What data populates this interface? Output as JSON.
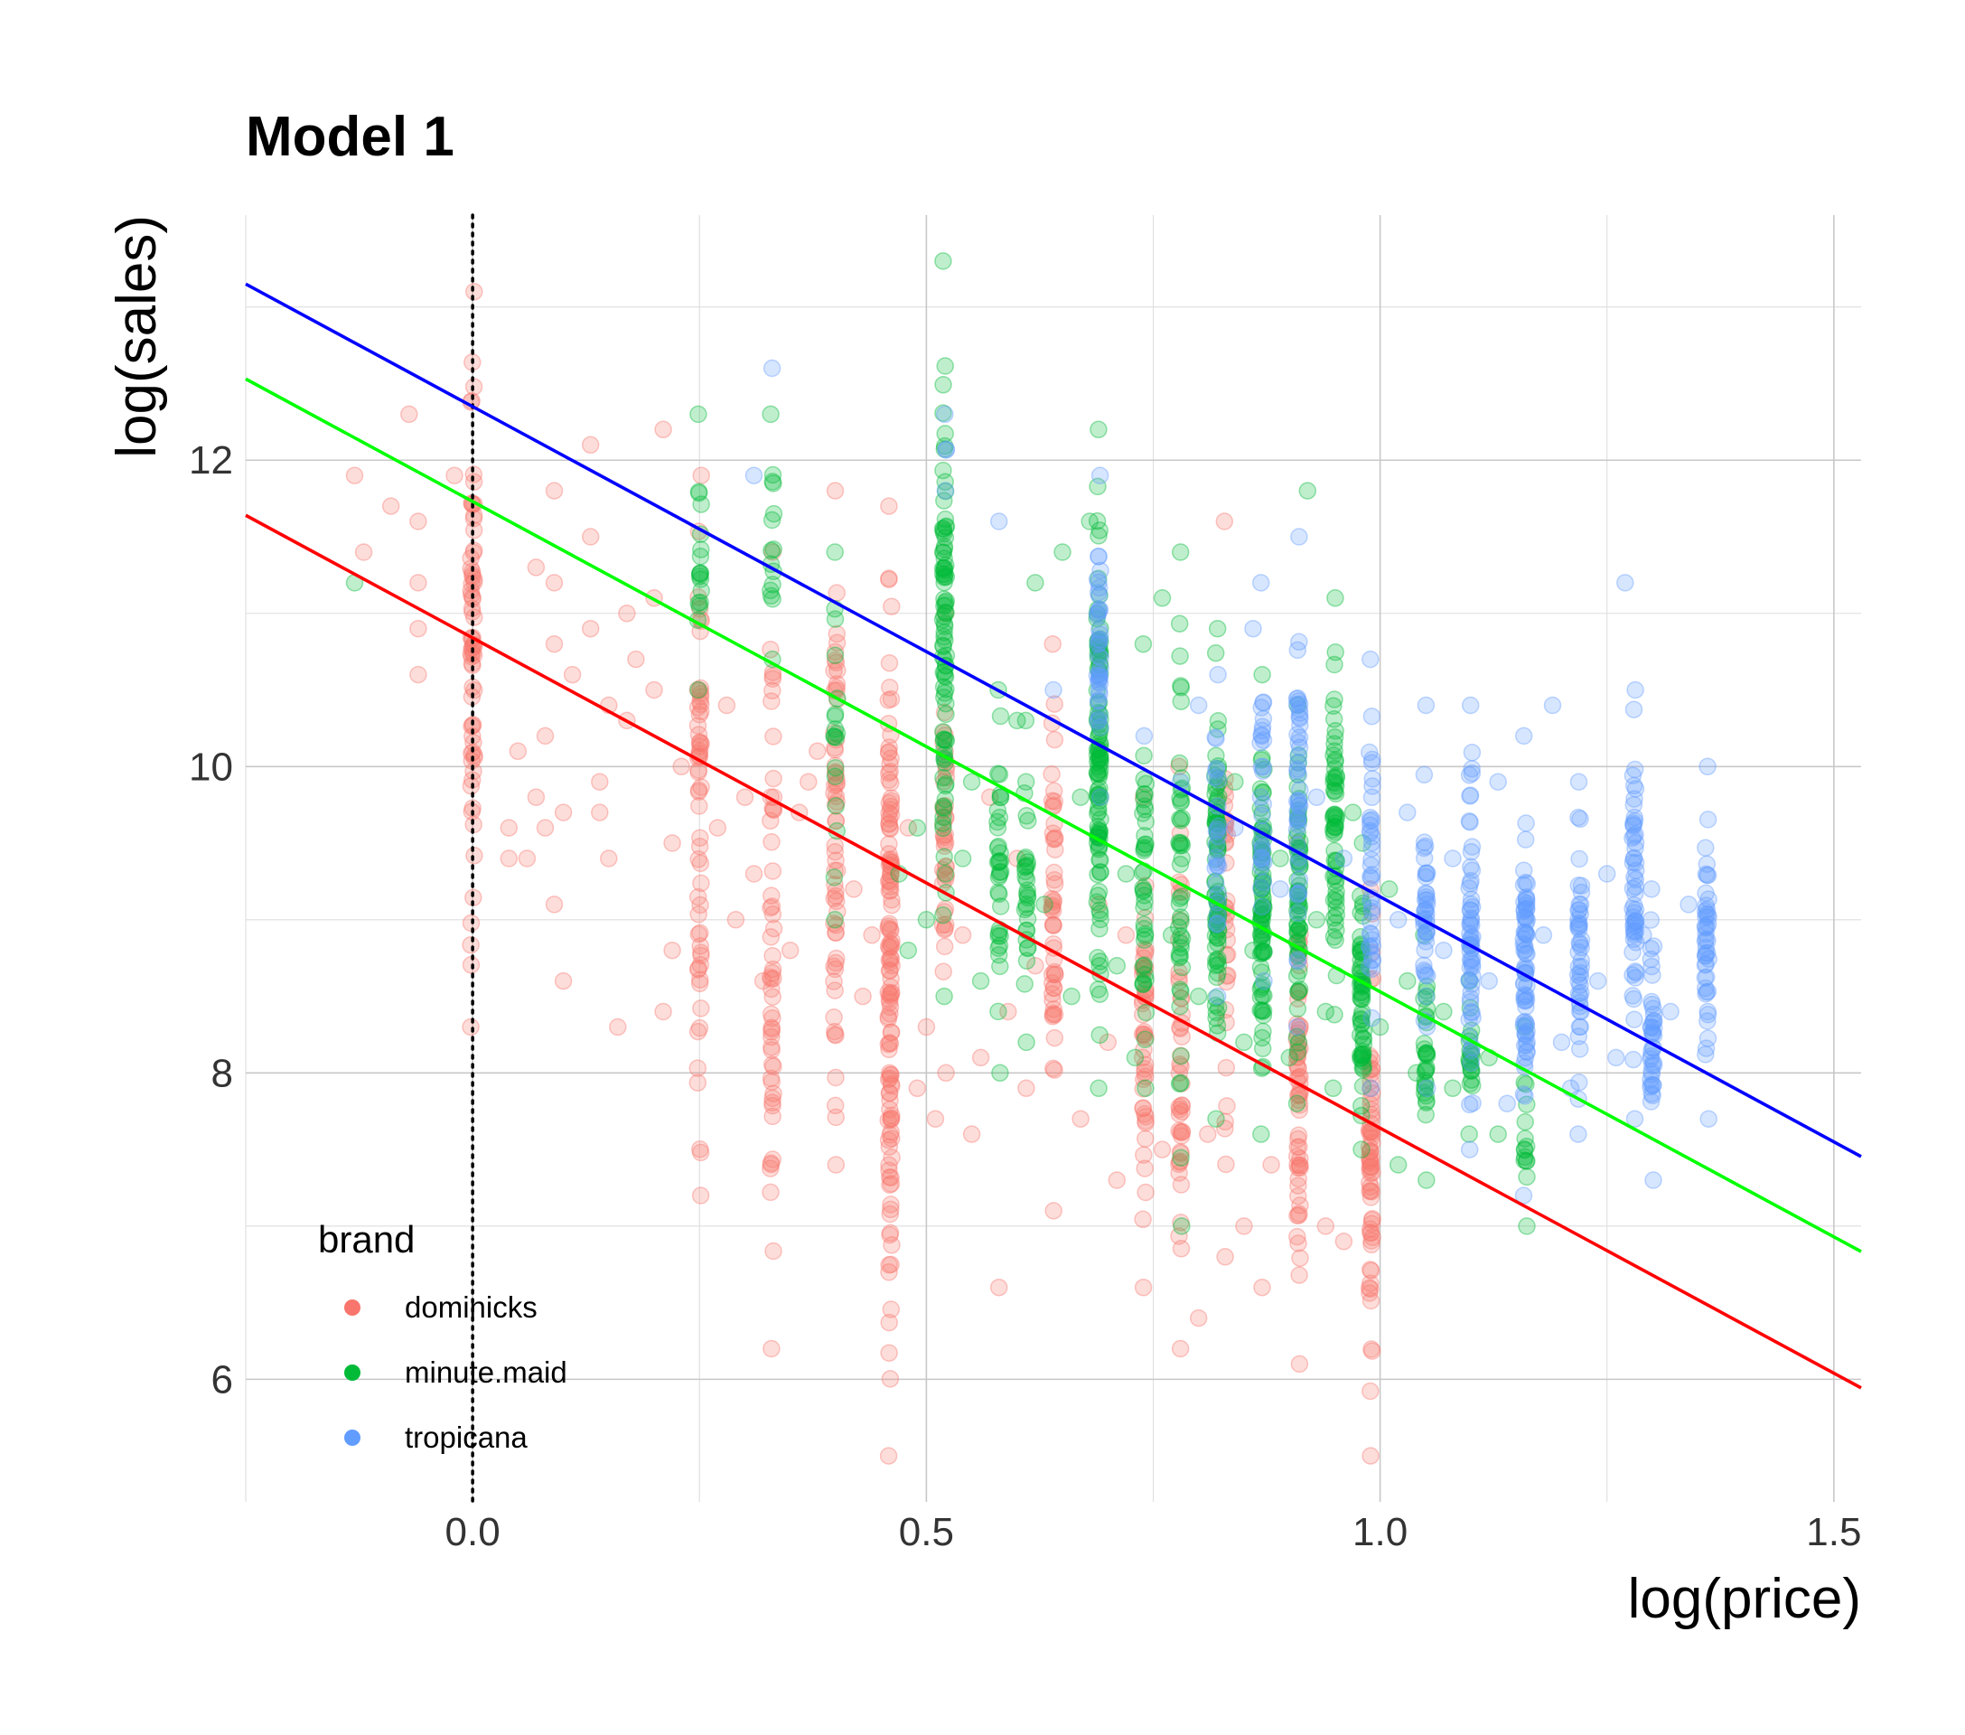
{
  "chart_data": {
    "type": "scatter",
    "title": "Model 1",
    "xlabel": "log(price)",
    "ylabel": "log(sales)",
    "xlim": [
      -0.25,
      1.53
    ],
    "ylim": [
      5.2,
      13.6
    ],
    "x_ticks": [
      0.0,
      0.5,
      1.0,
      1.5
    ],
    "x_tick_labels": [
      "0.0",
      "0.5",
      "1.0",
      "1.5"
    ],
    "y_ticks": [
      6,
      8,
      10,
      12
    ],
    "y_tick_labels": [
      "6",
      "8",
      "10",
      "12"
    ],
    "grid": true,
    "vline": {
      "x": 0.0,
      "style": "dotted",
      "color": "#000000"
    },
    "legend": {
      "title": "brand",
      "placement": "bottom-left",
      "entries": [
        "dominicks",
        "minute.maid",
        "tropicana"
      ]
    },
    "series": [
      {
        "name": "dominicks",
        "color": "#F8766D",
        "point_alpha": 0.25,
        "clusters": [
          {
            "x": 0.0,
            "ymin": 8.3,
            "ymax": 13.1,
            "n": 70
          },
          {
            "x": 0.25,
            "ymin": 7.2,
            "ymax": 11.9,
            "n": 60
          },
          {
            "x": 0.33,
            "ymin": 6.2,
            "ymax": 11.4,
            "n": 55
          },
          {
            "x": 0.4,
            "ymin": 7.4,
            "ymax": 11.8,
            "n": 60
          },
          {
            "x": 0.46,
            "ymin": 5.5,
            "ymax": 11.7,
            "n": 130
          },
          {
            "x": 0.52,
            "ymin": 8.0,
            "ymax": 11.0,
            "n": 40
          },
          {
            "x": 0.64,
            "ymin": 7.1,
            "ymax": 10.8,
            "n": 50
          },
          {
            "x": 0.74,
            "ymin": 6.6,
            "ymax": 9.8,
            "n": 45
          },
          {
            "x": 0.78,
            "ymin": 6.2,
            "ymax": 10.0,
            "n": 45
          },
          {
            "x": 0.83,
            "ymin": 6.8,
            "ymax": 11.6,
            "n": 35
          },
          {
            "x": 0.91,
            "ymin": 6.1,
            "ymax": 9.5,
            "n": 60
          },
          {
            "x": 0.99,
            "ymin": 5.5,
            "ymax": 9.2,
            "n": 70
          }
        ],
        "scatter_points": [
          [
            -0.13,
            11.9
          ],
          [
            -0.12,
            11.4
          ],
          [
            -0.09,
            11.7
          ],
          [
            -0.07,
            12.3
          ],
          [
            -0.06,
            11.6
          ],
          [
            -0.06,
            11.2
          ],
          [
            -0.06,
            10.9
          ],
          [
            -0.06,
            10.6
          ],
          [
            -0.02,
            11.9
          ],
          [
            0.04,
            9.6
          ],
          [
            0.04,
            9.4
          ],
          [
            0.05,
            10.1
          ],
          [
            0.06,
            9.4
          ],
          [
            0.07,
            9.8
          ],
          [
            0.07,
            11.3
          ],
          [
            0.08,
            10.2
          ],
          [
            0.08,
            9.6
          ],
          [
            0.09,
            11.8
          ],
          [
            0.09,
            11.2
          ],
          [
            0.09,
            10.8
          ],
          [
            0.09,
            9.1
          ],
          [
            0.1,
            9.7
          ],
          [
            0.1,
            8.6
          ],
          [
            0.11,
            10.6
          ],
          [
            0.13,
            12.1
          ],
          [
            0.13,
            11.5
          ],
          [
            0.13,
            10.9
          ],
          [
            0.14,
            9.9
          ],
          [
            0.14,
            9.7
          ],
          [
            0.15,
            10.4
          ],
          [
            0.15,
            9.4
          ],
          [
            0.16,
            8.3
          ],
          [
            0.17,
            11.0
          ],
          [
            0.17,
            10.3
          ],
          [
            0.18,
            10.7
          ],
          [
            0.2,
            11.1
          ],
          [
            0.2,
            10.5
          ],
          [
            0.21,
            12.2
          ],
          [
            0.21,
            8.4
          ],
          [
            0.22,
            9.5
          ],
          [
            0.22,
            8.8
          ],
          [
            0.23,
            10.0
          ],
          [
            0.27,
            9.6
          ],
          [
            0.28,
            10.4
          ],
          [
            0.29,
            9.0
          ],
          [
            0.3,
            9.8
          ],
          [
            0.31,
            9.3
          ],
          [
            0.32,
            8.6
          ],
          [
            0.35,
            8.8
          ],
          [
            0.36,
            9.7
          ],
          [
            0.37,
            9.9
          ],
          [
            0.38,
            10.1
          ],
          [
            0.42,
            9.2
          ],
          [
            0.43,
            8.5
          ],
          [
            0.44,
            8.9
          ],
          [
            0.48,
            9.6
          ],
          [
            0.49,
            7.9
          ],
          [
            0.5,
            8.3
          ],
          [
            0.51,
            7.7
          ],
          [
            0.54,
            8.9
          ],
          [
            0.55,
            7.6
          ],
          [
            0.56,
            8.1
          ],
          [
            0.57,
            9.8
          ],
          [
            0.58,
            6.6
          ],
          [
            0.59,
            8.4
          ],
          [
            0.6,
            9.4
          ],
          [
            0.61,
            7.9
          ],
          [
            0.62,
            8.7
          ],
          [
            0.67,
            7.7
          ],
          [
            0.69,
            9.1
          ],
          [
            0.7,
            8.2
          ],
          [
            0.71,
            7.3
          ],
          [
            0.72,
            8.9
          ],
          [
            0.76,
            7.5
          ],
          [
            0.8,
            6.4
          ],
          [
            0.81,
            7.6
          ],
          [
            0.85,
            7.0
          ],
          [
            0.87,
            6.6
          ],
          [
            0.88,
            7.4
          ],
          [
            0.94,
            7.0
          ],
          [
            0.96,
            6.9
          ]
        ]
      },
      {
        "name": "minute.maid",
        "color": "#00BA38",
        "point_alpha": 0.25,
        "clusters": [
          {
            "x": 0.25,
            "ymin": 10.5,
            "ymax": 12.3,
            "n": 18
          },
          {
            "x": 0.33,
            "ymin": 10.7,
            "ymax": 12.3,
            "n": 15
          },
          {
            "x": 0.4,
            "ymin": 9.0,
            "ymax": 11.4,
            "n": 18
          },
          {
            "x": 0.52,
            "ymin": 8.5,
            "ymax": 13.3,
            "n": 90
          },
          {
            "x": 0.58,
            "ymin": 8.0,
            "ymax": 10.5,
            "n": 35
          },
          {
            "x": 0.61,
            "ymin": 8.2,
            "ymax": 10.3,
            "n": 30
          },
          {
            "x": 0.69,
            "ymin": 7.9,
            "ymax": 12.2,
            "n": 110
          },
          {
            "x": 0.74,
            "ymin": 7.9,
            "ymax": 10.8,
            "n": 40
          },
          {
            "x": 0.78,
            "ymin": 7.0,
            "ymax": 11.4,
            "n": 45
          },
          {
            "x": 0.82,
            "ymin": 7.7,
            "ymax": 10.9,
            "n": 80
          },
          {
            "x": 0.87,
            "ymin": 7.6,
            "ymax": 10.6,
            "n": 80
          },
          {
            "x": 0.91,
            "ymin": 7.8,
            "ymax": 10.4,
            "n": 60
          },
          {
            "x": 0.95,
            "ymin": 7.9,
            "ymax": 11.1,
            "n": 60
          },
          {
            "x": 0.98,
            "ymin": 7.5,
            "ymax": 9.5,
            "n": 60
          },
          {
            "x": 1.05,
            "ymin": 7.3,
            "ymax": 8.9,
            "n": 30
          },
          {
            "x": 1.1,
            "ymin": 7.6,
            "ymax": 8.6,
            "n": 20
          },
          {
            "x": 1.16,
            "ymin": 7.0,
            "ymax": 8.3,
            "n": 15
          }
        ],
        "scatter_points": [
          [
            -0.13,
            11.2
          ],
          [
            0.47,
            9.3
          ],
          [
            0.48,
            8.8
          ],
          [
            0.49,
            9.6
          ],
          [
            0.5,
            9.0
          ],
          [
            0.54,
            9.4
          ],
          [
            0.55,
            9.9
          ],
          [
            0.56,
            8.6
          ],
          [
            0.6,
            10.3
          ],
          [
            0.62,
            11.2
          ],
          [
            0.63,
            9.1
          ],
          [
            0.65,
            11.4
          ],
          [
            0.66,
            8.5
          ],
          [
            0.67,
            9.8
          ],
          [
            0.68,
            11.6
          ],
          [
            0.71,
            8.7
          ],
          [
            0.72,
            9.3
          ],
          [
            0.73,
            8.1
          ],
          [
            0.76,
            11.1
          ],
          [
            0.77,
            8.9
          ],
          [
            0.8,
            8.5
          ],
          [
            0.84,
            9.9
          ],
          [
            0.85,
            8.2
          ],
          [
            0.86,
            8.8
          ],
          [
            0.89,
            9.4
          ],
          [
            0.9,
            8.1
          ],
          [
            0.92,
            11.8
          ],
          [
            0.93,
            9.0
          ],
          [
            0.94,
            8.4
          ],
          [
            0.97,
            9.7
          ],
          [
            1.0,
            8.3
          ],
          [
            1.01,
            9.2
          ],
          [
            1.02,
            7.4
          ],
          [
            1.03,
            8.6
          ],
          [
            1.04,
            8.0
          ],
          [
            1.07,
            8.4
          ],
          [
            1.08,
            7.9
          ],
          [
            1.12,
            8.1
          ],
          [
            1.13,
            7.6
          ]
        ]
      },
      {
        "name": "tropicana",
        "color": "#619CFF",
        "point_alpha": 0.25,
        "clusters": [
          {
            "x": 0.52,
            "ymin": 11.8,
            "ymax": 12.3,
            "n": 4
          },
          {
            "x": 0.69,
            "ymin": 9.8,
            "ymax": 11.9,
            "n": 40
          },
          {
            "x": 0.82,
            "ymin": 8.5,
            "ymax": 10.6,
            "n": 25
          },
          {
            "x": 0.87,
            "ymin": 8.6,
            "ymax": 11.2,
            "n": 30
          },
          {
            "x": 0.91,
            "ymin": 8.3,
            "ymax": 11.5,
            "n": 45
          },
          {
            "x": 0.99,
            "ymin": 7.9,
            "ymax": 10.7,
            "n": 40
          },
          {
            "x": 1.05,
            "ymin": 7.9,
            "ymax": 10.4,
            "n": 40
          },
          {
            "x": 1.1,
            "ymin": 7.5,
            "ymax": 10.4,
            "n": 60
          },
          {
            "x": 1.16,
            "ymin": 7.2,
            "ymax": 10.2,
            "n": 70
          },
          {
            "x": 1.22,
            "ymin": 7.6,
            "ymax": 9.9,
            "n": 45
          },
          {
            "x": 1.28,
            "ymin": 7.7,
            "ymax": 10.5,
            "n": 55
          },
          {
            "x": 1.3,
            "ymin": 7.3,
            "ymax": 9.2,
            "n": 40
          },
          {
            "x": 1.36,
            "ymin": 7.7,
            "ymax": 10.0,
            "n": 45
          }
        ],
        "scatter_points": [
          [
            0.33,
            12.6
          ],
          [
            0.31,
            11.9
          ],
          [
            0.58,
            11.6
          ],
          [
            0.64,
            10.5
          ],
          [
            0.74,
            10.2
          ],
          [
            0.78,
            9.9
          ],
          [
            0.8,
            10.4
          ],
          [
            0.84,
            9.6
          ],
          [
            0.86,
            10.9
          ],
          [
            0.89,
            9.2
          ],
          [
            0.93,
            9.8
          ],
          [
            0.96,
            9.4
          ],
          [
            1.02,
            9.0
          ],
          [
            1.03,
            9.7
          ],
          [
            1.07,
            8.8
          ],
          [
            1.08,
            9.4
          ],
          [
            1.12,
            8.6
          ],
          [
            1.13,
            9.9
          ],
          [
            1.14,
            7.8
          ],
          [
            1.18,
            8.9
          ],
          [
            1.19,
            10.4
          ],
          [
            1.2,
            8.2
          ],
          [
            1.21,
            7.9
          ],
          [
            1.24,
            8.6
          ],
          [
            1.25,
            9.3
          ],
          [
            1.26,
            8.1
          ],
          [
            1.27,
            11.2
          ],
          [
            1.29,
            8.9
          ],
          [
            1.32,
            8.4
          ],
          [
            1.34,
            9.1
          ]
        ]
      }
    ],
    "fit_lines": [
      {
        "series": "dominicks",
        "color": "#FF0000",
        "intercept": 10.84,
        "slope": -3.2
      },
      {
        "series": "minute.maid",
        "color": "#00FF00",
        "intercept": 11.73,
        "slope": -3.2
      },
      {
        "series": "tropicana",
        "color": "#0000FF",
        "intercept": 12.35,
        "slope": -3.2
      }
    ]
  }
}
